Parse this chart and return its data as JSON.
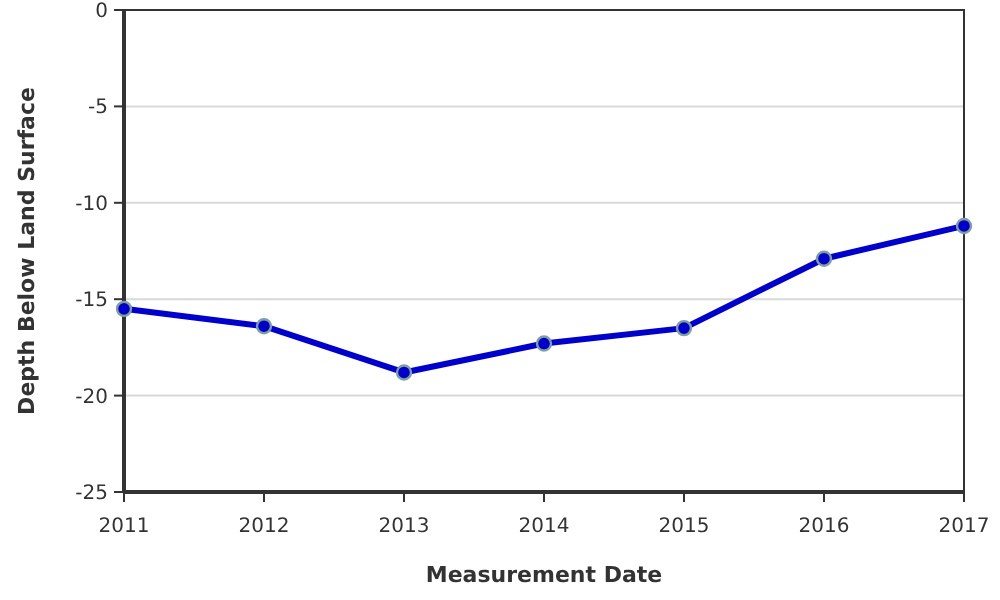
{
  "chart_data": {
    "type": "line",
    "xlabel": "Measurement Date",
    "ylabel": "Depth Below Land Surface",
    "x": [
      2011,
      2012,
      2013,
      2014,
      2015,
      2016,
      2017
    ],
    "series": [
      {
        "color": "#0000cc",
        "values": [
          -15.5,
          -16.4,
          -18.8,
          -17.3,
          -16.5,
          -12.9,
          -11.2
        ]
      }
    ],
    "xlim": [
      2011,
      2017
    ],
    "xticks": [
      2011,
      2012,
      2013,
      2014,
      2015,
      2016,
      2017
    ],
    "ylim": [
      -25,
      0
    ],
    "yticks": [
      -25,
      -20,
      -15,
      -10,
      -5,
      0
    ],
    "grid": "y",
    "marker": "circle",
    "line_style": "solid"
  }
}
